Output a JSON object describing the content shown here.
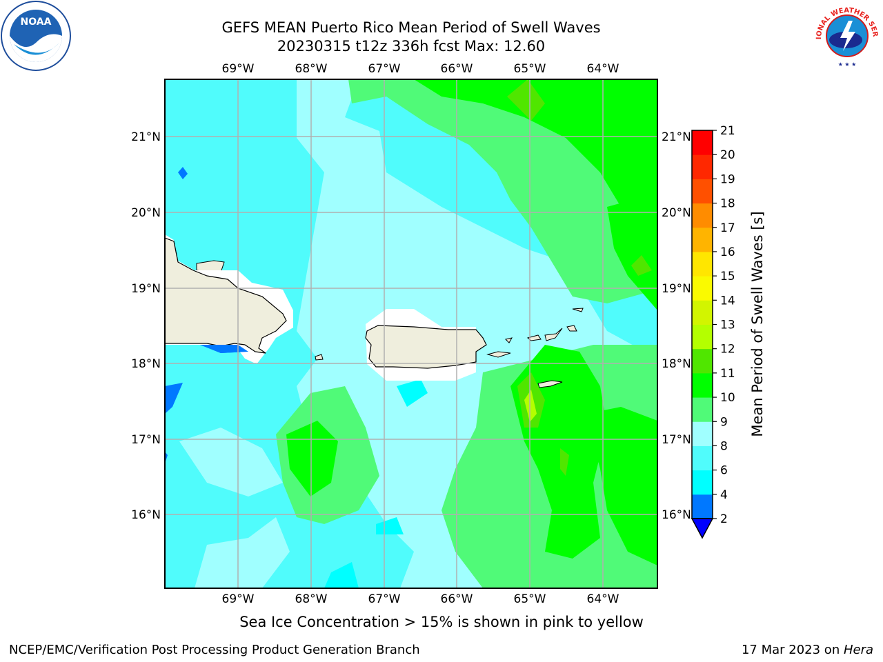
{
  "title_line1": "GEFS MEAN Puerto Rico Mean Period of Swell Waves",
  "title_line2": "20230315 t12z 336h fcst   Max: 12.60",
  "colorbar": {
    "label": "Mean Period of Swell Waves [s]",
    "ticks": [
      "2",
      "4",
      "6",
      "8",
      "9",
      "10",
      "11",
      "12",
      "13",
      "14",
      "15",
      "16",
      "17",
      "18",
      "19",
      "20",
      "21"
    ],
    "colors": [
      "#0000ff",
      "#0078ff",
      "#00ffff",
      "#50fcfc",
      "#a0ffff",
      "#50fa78",
      "#00ff00",
      "#50e600",
      "#b4ff00",
      "#d2f500",
      "#fafa00",
      "#ffe600",
      "#ffb400",
      "#ff8c00",
      "#ff5000",
      "#ff2800",
      "#ff0000"
    ]
  },
  "map": {
    "lon_ticks": [
      "69°W",
      "68°W",
      "67°W",
      "66°W",
      "65°W",
      "64°W"
    ],
    "lat_ticks": [
      "21°N",
      "20°N",
      "19°N",
      "18°N",
      "17°N",
      "16°N"
    ]
  },
  "logos": {
    "noaa_text": "NOAA",
    "nws_text": "NATIONAL WEATHER SERVICE"
  },
  "bottom_note": "Sea Ice Concentration > 15% is shown in pink to yellow",
  "footer_left": "NCEP/EMC/Verification Post Processing Product Generation Branch",
  "footer_right_text": "17 Mar 2023 on ",
  "footer_right_italic": "Hera"
}
